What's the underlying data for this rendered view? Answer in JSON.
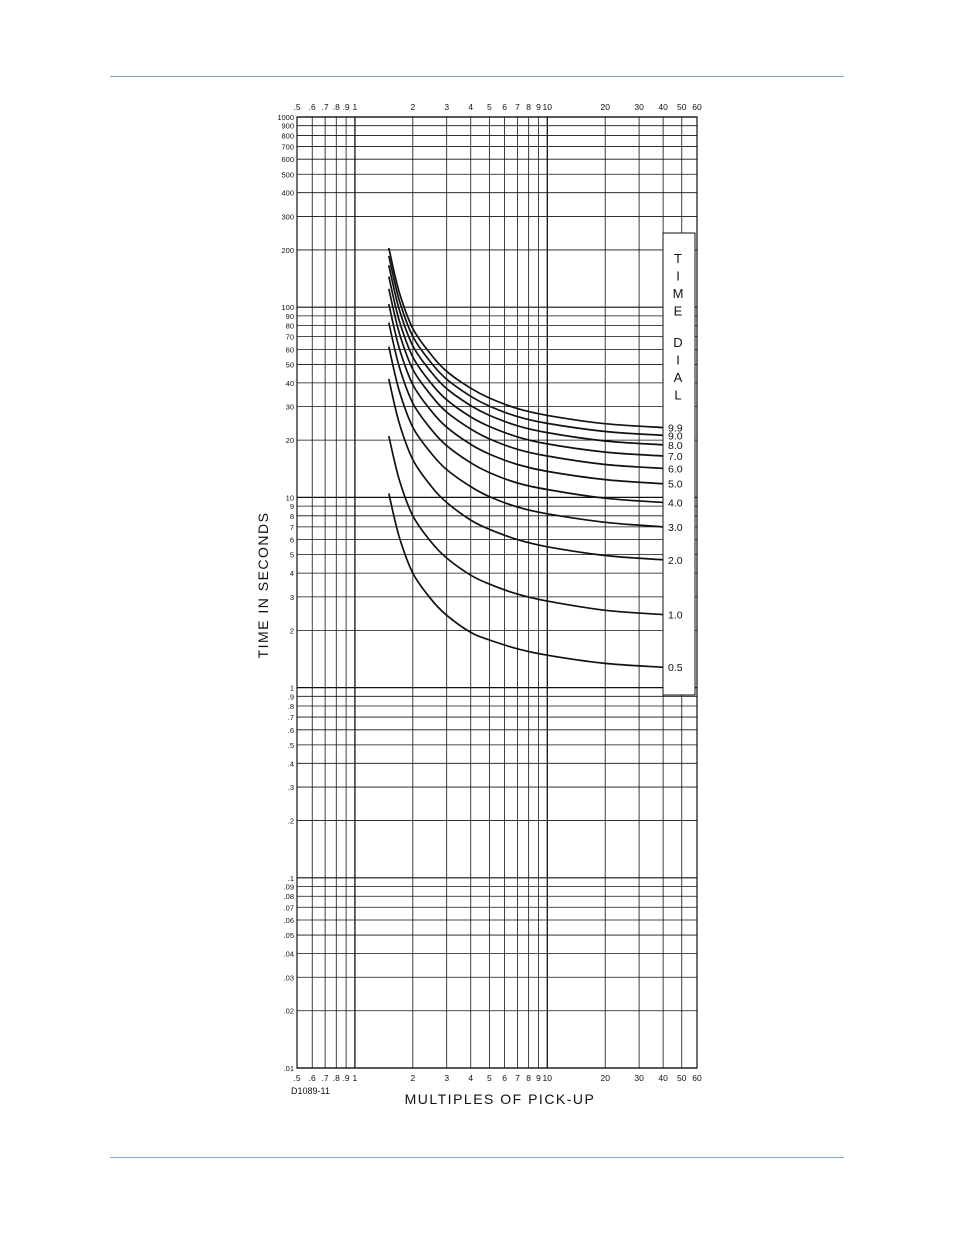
{
  "chart_data": {
    "type": "line",
    "x_scale": "log",
    "y_scale": "log",
    "xlim": [
      0.5,
      60
    ],
    "ylim": [
      0.01,
      1000
    ],
    "grid": true,
    "xlabel": "MULTIPLES OF PICK-UP",
    "ylabel": "TIME IN SECONDS",
    "drawing_code": "D1089-11",
    "legend_title": "TIME DIAL",
    "x_ticks": [
      {
        "v": 0.5,
        "label": ".5"
      },
      {
        "v": 0.6,
        "label": ".6"
      },
      {
        "v": 0.7,
        "label": ".7"
      },
      {
        "v": 0.8,
        "label": ".8"
      },
      {
        "v": 0.9,
        "label": ".9"
      },
      {
        "v": 1,
        "label": "1"
      },
      {
        "v": 2,
        "label": "2"
      },
      {
        "v": 3,
        "label": "3"
      },
      {
        "v": 4,
        "label": "4"
      },
      {
        "v": 5,
        "label": "5"
      },
      {
        "v": 6,
        "label": "6"
      },
      {
        "v": 7,
        "label": "7"
      },
      {
        "v": 8,
        "label": "8"
      },
      {
        "v": 9,
        "label": "9"
      },
      {
        "v": 10,
        "label": "10"
      },
      {
        "v": 20,
        "label": "20"
      },
      {
        "v": 30,
        "label": "30"
      },
      {
        "v": 40,
        "label": "40"
      },
      {
        "v": 50,
        "label": "50"
      },
      {
        "v": 60,
        "label": "60"
      }
    ],
    "y_ticks": [
      {
        "v": 0.01,
        "label": ".01"
      },
      {
        "v": 0.02,
        "label": ".02"
      },
      {
        "v": 0.03,
        "label": ".03"
      },
      {
        "v": 0.04,
        "label": ".04"
      },
      {
        "v": 0.05,
        "label": ".05"
      },
      {
        "v": 0.06,
        "label": ".06"
      },
      {
        "v": 0.07,
        "label": ".07"
      },
      {
        "v": 0.08,
        "label": ".08"
      },
      {
        "v": 0.09,
        "label": ".09"
      },
      {
        "v": 0.1,
        "label": ".1"
      },
      {
        "v": 0.2,
        "label": ".2"
      },
      {
        "v": 0.3,
        "label": ".3"
      },
      {
        "v": 0.4,
        "label": ".4"
      },
      {
        "v": 0.5,
        "label": ".5"
      },
      {
        "v": 0.6,
        "label": ".6"
      },
      {
        "v": 0.7,
        "label": ".7"
      },
      {
        "v": 0.8,
        "label": ".8"
      },
      {
        "v": 0.9,
        "label": ".9"
      },
      {
        "v": 1,
        "label": "1"
      },
      {
        "v": 2,
        "label": "2"
      },
      {
        "v": 3,
        "label": "3"
      },
      {
        "v": 4,
        "label": "4"
      },
      {
        "v": 5,
        "label": "5"
      },
      {
        "v": 6,
        "label": "6"
      },
      {
        "v": 7,
        "label": "7"
      },
      {
        "v": 8,
        "label": "8"
      },
      {
        "v": 9,
        "label": "9"
      },
      {
        "v": 10,
        "label": "10"
      },
      {
        "v": 20,
        "label": "20"
      },
      {
        "v": 30,
        "label": "30"
      },
      {
        "v": 40,
        "label": "40"
      },
      {
        "v": 50,
        "label": "50"
      },
      {
        "v": 60,
        "label": "60"
      },
      {
        "v": 70,
        "label": "70"
      },
      {
        "v": 80,
        "label": "80"
      },
      {
        "v": 90,
        "label": "90"
      },
      {
        "v": 100,
        "label": "100"
      },
      {
        "v": 200,
        "label": "200"
      },
      {
        "v": 300,
        "label": "300"
      },
      {
        "v": 400,
        "label": "400"
      },
      {
        "v": 500,
        "label": "500"
      },
      {
        "v": 600,
        "label": "600"
      },
      {
        "v": 700,
        "label": "700"
      },
      {
        "v": 800,
        "label": "800"
      },
      {
        "v": 900,
        "label": "900"
      },
      {
        "v": 1000,
        "label": "1000"
      }
    ],
    "series": [
      {
        "name": "0.5",
        "x": [
          1.5,
          1.7,
          2,
          2.5,
          3,
          4,
          5,
          7,
          10,
          20,
          40
        ],
        "y": [
          10.5,
          6.2,
          4.0,
          2.9,
          2.4,
          1.95,
          1.78,
          1.6,
          1.48,
          1.34,
          1.28
        ]
      },
      {
        "name": "1.0",
        "x": [
          1.5,
          1.7,
          2,
          2.5,
          3,
          4,
          5,
          7,
          10,
          20,
          40
        ],
        "y": [
          21,
          12.4,
          8.0,
          5.8,
          4.8,
          3.9,
          3.5,
          3.1,
          2.85,
          2.55,
          2.42
        ]
      },
      {
        "name": "2.0",
        "x": [
          1.5,
          1.7,
          2,
          2.5,
          3,
          4,
          5,
          7,
          10,
          20,
          40
        ],
        "y": [
          42,
          24.6,
          15.8,
          11.4,
          9.4,
          7.6,
          6.8,
          6.0,
          5.5,
          4.95,
          4.7
        ]
      },
      {
        "name": "3.0",
        "x": [
          1.5,
          1.7,
          2,
          2.5,
          3,
          4,
          5,
          7,
          10,
          20,
          40
        ],
        "y": [
          62,
          36.4,
          23.4,
          17.0,
          14.0,
          11.4,
          10.1,
          8.9,
          8.2,
          7.4,
          7.0
        ]
      },
      {
        "name": "4.0",
        "x": [
          1.5,
          1.7,
          2,
          2.5,
          3,
          4,
          5,
          7,
          10,
          20,
          40
        ],
        "y": [
          83,
          48.7,
          31.3,
          22.7,
          18.7,
          15.2,
          13.5,
          11.9,
          11.0,
          9.9,
          9.4
        ]
      },
      {
        "name": "5.0",
        "x": [
          1.5,
          1.7,
          2,
          2.5,
          3,
          4,
          5,
          7,
          10,
          20,
          40
        ],
        "y": [
          104,
          61,
          39.2,
          28.4,
          23.4,
          19.0,
          16.9,
          14.9,
          13.7,
          12.4,
          11.8
        ]
      },
      {
        "name": "6.0",
        "x": [
          1.5,
          1.7,
          2,
          2.5,
          3,
          4,
          5,
          7,
          10,
          20,
          40
        ],
        "y": [
          125,
          73.4,
          47.2,
          34.2,
          28.1,
          22.9,
          20.3,
          17.9,
          16.5,
          14.9,
          14.2
        ]
      },
      {
        "name": "7.0",
        "x": [
          1.5,
          1.7,
          2,
          2.5,
          3,
          4,
          5,
          7,
          10,
          20,
          40
        ],
        "y": [
          145,
          85.1,
          54.7,
          39.6,
          32.6,
          26.5,
          23.6,
          20.8,
          19.1,
          17.3,
          16.5
        ]
      },
      {
        "name": "8.0",
        "x": [
          1.5,
          1.7,
          2,
          2.5,
          3,
          4,
          5,
          7,
          10,
          20,
          40
        ],
        "y": [
          166,
          97.4,
          62.6,
          45.4,
          37.3,
          30.4,
          27.0,
          23.8,
          21.9,
          19.8,
          18.9
        ]
      },
      {
        "name": "9.0",
        "x": [
          1.5,
          1.7,
          2,
          2.5,
          3,
          4,
          5,
          7,
          10,
          20,
          40
        ],
        "y": [
          186,
          109,
          70.2,
          50.8,
          41.8,
          34.0,
          30.2,
          26.6,
          24.5,
          22.2,
          21.2
        ]
      },
      {
        "name": "9.9",
        "x": [
          1.5,
          1.7,
          2,
          2.5,
          3,
          4,
          5,
          7,
          10,
          20,
          40
        ],
        "y": [
          205,
          120,
          77.3,
          56.0,
          46.0,
          37.5,
          33.3,
          29.3,
          27.0,
          24.4,
          23.3
        ]
      }
    ],
    "legend_labels": [
      {
        "label": "9.9",
        "y": 23.3
      },
      {
        "label": "9.0",
        "y": 21.2
      },
      {
        "label": "8.0",
        "y": 18.9
      },
      {
        "label": "7.0",
        "y": 16.5
      },
      {
        "label": "6.0",
        "y": 14.2
      },
      {
        "label": "5.0",
        "y": 11.8
      },
      {
        "label": "4.0",
        "y": 9.4
      },
      {
        "label": "3.0",
        "y": 7.0
      },
      {
        "label": "2.0",
        "y": 4.7
      },
      {
        "label": "1.0",
        "y": 2.42
      },
      {
        "label": "0.5",
        "y": 1.28
      }
    ]
  }
}
